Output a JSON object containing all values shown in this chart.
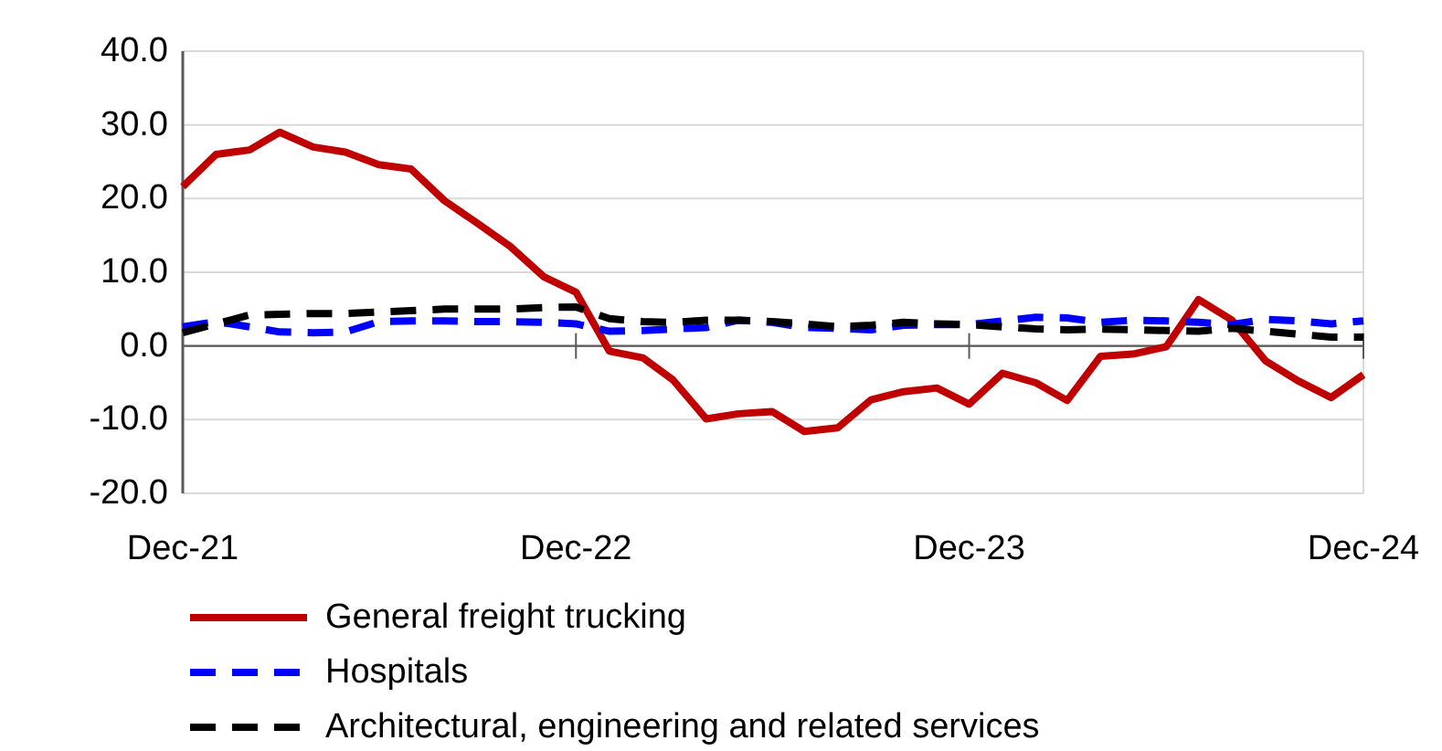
{
  "chart_data": {
    "type": "line",
    "x": [
      "2021-12",
      "2022-01",
      "2022-02",
      "2022-03",
      "2022-04",
      "2022-05",
      "2022-06",
      "2022-07",
      "2022-08",
      "2022-09",
      "2022-10",
      "2022-11",
      "2022-12",
      "2023-01",
      "2023-02",
      "2023-03",
      "2023-04",
      "2023-05",
      "2023-06",
      "2023-07",
      "2023-08",
      "2023-09",
      "2023-10",
      "2023-11",
      "2023-12",
      "2024-01",
      "2024-02",
      "2024-03",
      "2024-04",
      "2024-05",
      "2024-06",
      "2024-07",
      "2024-08",
      "2024-09",
      "2024-10",
      "2024-11",
      "2024-12"
    ],
    "series": [
      {
        "name": "General freight trucking",
        "color": "#c00000",
        "line_style": "solid",
        "values": [
          21.6,
          26.0,
          26.6,
          29.0,
          27.0,
          26.3,
          24.6,
          24.0,
          19.7,
          16.6,
          13.5,
          9.4,
          7.3,
          -0.7,
          -1.6,
          -4.6,
          -9.9,
          -9.2,
          -8.9,
          -11.6,
          -11.1,
          -7.3,
          -6.2,
          -5.7,
          -7.9,
          -3.7,
          -5.0,
          -7.4,
          -1.4,
          -1.1,
          -0.1,
          6.3,
          3.5,
          -2.0,
          -4.7,
          -7.0,
          -3.9
        ]
      },
      {
        "name": "Hospitals",
        "color": "#0000ff",
        "line_style": "dashed",
        "values": [
          2.6,
          3.3,
          2.6,
          1.9,
          1.8,
          1.9,
          3.3,
          3.4,
          3.4,
          3.3,
          3.3,
          3.2,
          3.0,
          2.0,
          2.1,
          2.3,
          2.5,
          3.5,
          3.2,
          2.5,
          2.4,
          2.2,
          2.8,
          2.9,
          2.9,
          3.4,
          3.9,
          3.8,
          3.2,
          3.5,
          3.4,
          3.2,
          2.9,
          3.6,
          3.4,
          3.0,
          3.4
        ]
      },
      {
        "name": "Architectural, engineering and related services",
        "color": "#000000",
        "line_style": "dashed",
        "values": [
          1.8,
          3.0,
          4.2,
          4.3,
          4.4,
          4.4,
          4.6,
          4.8,
          5.0,
          5.0,
          5.0,
          5.2,
          5.3,
          3.7,
          3.3,
          3.2,
          3.5,
          3.5,
          3.3,
          3.0,
          2.6,
          2.8,
          3.2,
          3.0,
          2.9,
          2.6,
          2.3,
          2.2,
          2.3,
          2.2,
          2.1,
          2.0,
          2.4,
          2.0,
          1.6,
          1.2,
          1.2
        ]
      }
    ],
    "xlim": [
      "2021-12",
      "2024-12"
    ],
    "xticks": [
      {
        "value": "2021-12",
        "label": "Dec-21"
      },
      {
        "value": "2022-12",
        "label": "Dec-22"
      },
      {
        "value": "2023-12",
        "label": "Dec-23"
      },
      {
        "value": "2024-12",
        "label": "Dec-24"
      }
    ],
    "ylim": [
      -20,
      40
    ],
    "yticks": [
      {
        "value": -20,
        "label": "-20.0"
      },
      {
        "value": -10,
        "label": "-10.0"
      },
      {
        "value": 0,
        "label": "0.0"
      },
      {
        "value": 10,
        "label": "10.0"
      },
      {
        "value": 20,
        "label": "20.0"
      },
      {
        "value": 30,
        "label": "30.0"
      },
      {
        "value": 40,
        "label": "40.0"
      }
    ],
    "grid": "y",
    "legend": "bottom"
  }
}
